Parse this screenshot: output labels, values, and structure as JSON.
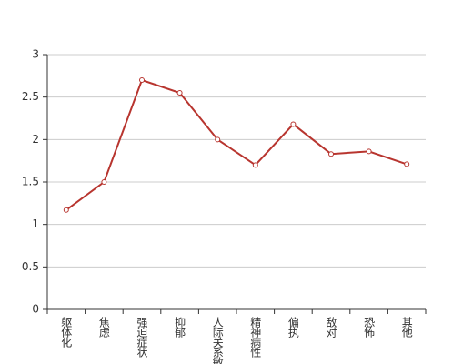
{
  "chart_data": {
    "type": "line",
    "categories": [
      "躯体化",
      "焦虑",
      "强迫症状",
      "抑郁",
      "人际关系敏感",
      "精神病性",
      "偏执",
      "敌对",
      "恐怖",
      "其他"
    ],
    "values": [
      1.17,
      1.5,
      2.7,
      2.55,
      2.0,
      1.7,
      2.18,
      1.83,
      1.86,
      1.71
    ],
    "color": "#b8352f",
    "ylim": [
      0,
      3
    ],
    "yticks": [
      0,
      0.5,
      1,
      1.5,
      2,
      2.5,
      3
    ],
    "grid": true
  }
}
